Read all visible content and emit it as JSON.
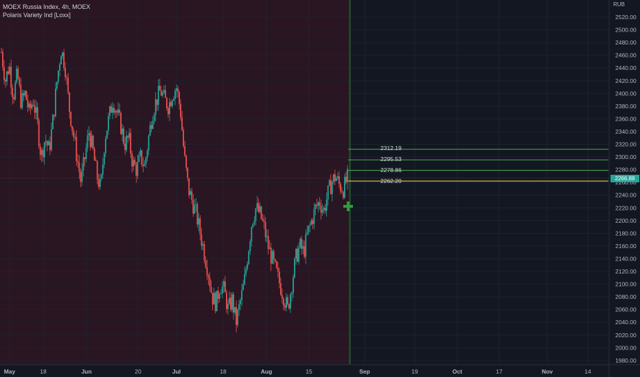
{
  "chart": {
    "symbol_line": "MOEX Russia Index, 4h, MOEX",
    "indicator_line": "Polaris Variety Ind [Loxx]",
    "currency": "RUB",
    "last_price": "2266.88",
    "price_axis_ticks": [
      "2520.00",
      "2500.00",
      "2480.00",
      "2460.00",
      "2440.00",
      "2420.00",
      "2400.00",
      "2380.00",
      "2360.00",
      "2340.00",
      "2320.00",
      "2300.00",
      "2280.00",
      "2260.00",
      "2240.00",
      "2220.00",
      "2200.00",
      "2180.00",
      "2160.00",
      "2140.00",
      "2120.00",
      "2100.00",
      "2080.00",
      "2060.00",
      "2040.00",
      "2020.00",
      "2000.00",
      "1980.00"
    ],
    "time_axis_labels": [
      "May",
      "18",
      "Jun",
      "20",
      "Jul",
      "18",
      "Aug",
      "15",
      "Sep",
      "19",
      "Oct",
      "17",
      "Nov",
      "14"
    ],
    "levels": [
      {
        "label": "2312.19",
        "value": 2312.19,
        "color": "#4caf50"
      },
      {
        "label": "2295.53",
        "value": 2295.53,
        "color": "#4caf50"
      },
      {
        "label": "2278.86",
        "value": 2278.86,
        "color": "#4caf50"
      },
      {
        "label": "2262.20",
        "value": 2262.2,
        "color": "#ffeb3b"
      }
    ],
    "colors": {
      "background": "#131722",
      "history_shade": "#2a1522",
      "up": "#26a69a",
      "down": "#ef5350",
      "grid": "#1e222d",
      "axis_text": "#b2b5be",
      "cursor_line": "#1f4d2c",
      "marker": "#2e9e3a"
    },
    "marker_icon": "plus-icon"
  },
  "chart_data": {
    "type": "candlestick",
    "y_range": [
      1975,
      2528
    ],
    "path": [
      2465,
      2420,
      2445,
      2395,
      2430,
      2385,
      2400,
      2370,
      2390,
      2355,
      2300,
      2330,
      2310,
      2360,
      2420,
      2470,
      2445,
      2380,
      2340,
      2300,
      2260,
      2300,
      2340,
      2310,
      2270,
      2250,
      2330,
      2360,
      2390,
      2370,
      2350,
      2320,
      2330,
      2290,
      2280,
      2300,
      2285,
      2330,
      2370,
      2390,
      2405,
      2390,
      2380,
      2400,
      2410,
      2375,
      2300,
      2250,
      2230,
      2210,
      2180,
      2150,
      2120,
      2080,
      2070,
      2100,
      2090,
      2060,
      2075,
      2040,
      2070,
      2100,
      2150,
      2200,
      2220,
      2210,
      2190,
      2160,
      2140,
      2120,
      2100,
      2080,
      2060,
      2100,
      2140,
      2160,
      2150,
      2180,
      2200,
      2220,
      2230,
      2215,
      2240,
      2260,
      2270,
      2255,
      2250,
      2266.88
    ]
  }
}
